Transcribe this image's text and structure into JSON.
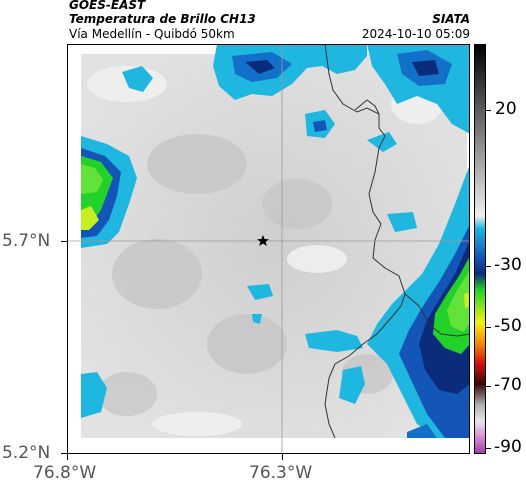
{
  "header": {
    "satellite": "GOES-EAST",
    "product": "Temperatura de Brillo CH13",
    "region": "Vía Medellín - Quibdó 50km",
    "org": "SIATA",
    "datetime": "2024-10-10 05:09"
  },
  "axes": {
    "lat_ticks": [
      "5.7°N",
      "5.2°N"
    ],
    "lon_ticks": [
      "76.8°W",
      "76.3°W"
    ]
  },
  "colorbar": {
    "ticks": [
      "20",
      "-30",
      "-50",
      "-70",
      "-90"
    ]
  },
  "colors": {
    "cloud_light": "#e0e0e0",
    "cloud_cyan": "#1fb6e0",
    "cloud_blue": "#1456b8",
    "cloud_navy": "#0b2c7a",
    "cloud_green": "#22d22a",
    "cloud_yellow": "#f3f10e"
  },
  "marker_icon": "star-icon"
}
